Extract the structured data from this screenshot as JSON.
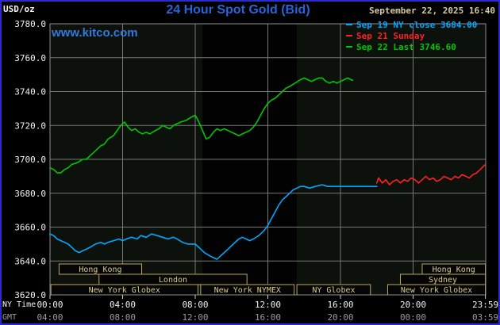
{
  "page": {
    "background": "#000000",
    "border_color": "#2a2ace"
  },
  "header": {
    "units_label": "USD/oz",
    "title": "24 Hour Spot Gold (Bid)",
    "title_color": "#2b63d9",
    "datetime": "September 22, 2025 16:40",
    "datetime_color": "#d6cba0",
    "watermark": "www.kitco.com",
    "watermark_color": "#3379e0"
  },
  "legend": {
    "position": "top-right",
    "items": [
      {
        "label": "Sep 19 NY close 3684.00",
        "color": "#00a8ff"
      },
      {
        "label": "Sep 21 Sunday",
        "color": "#ff2222"
      },
      {
        "label": "Sep 22 Last 3746.60",
        "color": "#00c800"
      }
    ]
  },
  "axis": {
    "ny_time_label": "NY Time",
    "gmt_label": "GMT"
  },
  "chart_data": {
    "type": "line",
    "title": "24 Hour Spot Gold (Bid)",
    "xlabel": "NY Time",
    "ylabel": "USD/oz",
    "ylim": [
      3620,
      3780
    ],
    "xlim_hours": [
      0,
      24
    ],
    "grid": true,
    "legend_position": "top-right",
    "colors": {
      "plot_bg": "#0d110c",
      "band": "#020202",
      "grid": "#787878",
      "border": "#909090",
      "axis_text": "#f2f2f2",
      "gmt_text": "#9b9b9b",
      "session_border": "#baa75c",
      "session_text": "#d9cc8e",
      "session_fill": "#050505",
      "tick": "#cccccc"
    },
    "y_ticks": [
      {
        "value": 3780,
        "label": "3780.0"
      },
      {
        "value": 3760,
        "label": "3760.0"
      },
      {
        "value": 3740,
        "label": "3740.0"
      },
      {
        "value": 3720,
        "label": "3720.0"
      },
      {
        "value": 3700,
        "label": "3700.0"
      },
      {
        "value": 3680,
        "label": "3680.0"
      },
      {
        "value": 3660,
        "label": "3660.0"
      },
      {
        "value": 3640,
        "label": "3640.0"
      },
      {
        "value": 3620,
        "label": "3620.0"
      }
    ],
    "x_ticks": [
      {
        "hour": 0,
        "ny": "00:00",
        "gmt": "04:00"
      },
      {
        "hour": 4,
        "ny": "04:00",
        "gmt": "08:00"
      },
      {
        "hour": 8,
        "ny": "08:00",
        "gmt": "12:00"
      },
      {
        "hour": 12,
        "ny": "12:00",
        "gmt": "16:00"
      },
      {
        "hour": 16,
        "ny": "16:00",
        "gmt": "20:00"
      },
      {
        "hour": 20,
        "ny": "20:00",
        "gmt": "00:00"
      },
      {
        "hour": 23.983,
        "ny": "23:59",
        "gmt": "03:59"
      }
    ],
    "shaded_region": {
      "start_hour": 8.4,
      "end_hour": 13.6
    },
    "sessions": [
      {
        "row": 1,
        "label": "Hong Kong",
        "start": 0.5,
        "end": 5.05
      },
      {
        "row": 1,
        "label": "Hong Kong",
        "start": 20.5,
        "end": 23.98
      },
      {
        "row": 2,
        "label": "London",
        "start": 2.7,
        "end": 10.85
      },
      {
        "row": 2,
        "label": "Sydney",
        "start": 19.3,
        "end": 23.98
      },
      {
        "row": 3,
        "label": "New York Globex",
        "start": 0.05,
        "end": 8.15
      },
      {
        "row": 3,
        "label": "New York NYMEX",
        "start": 8.3,
        "end": 13.45
      },
      {
        "row": 3,
        "label": "NY Globex",
        "start": 13.6,
        "end": 17.65
      },
      {
        "row": 3,
        "label": "New York Globex",
        "start": 18.6,
        "end": 23.98
      }
    ],
    "series": [
      {
        "name": "Sep 19 NY close",
        "close_value": 3684.0,
        "color": "#00a8ff",
        "points": [
          [
            0,
            3656
          ],
          [
            0.2,
            3655
          ],
          [
            0.4,
            3653
          ],
          [
            0.6,
            3652
          ],
          [
            0.8,
            3651
          ],
          [
            1,
            3650
          ],
          [
            1.2,
            3648
          ],
          [
            1.4,
            3646
          ],
          [
            1.6,
            3645
          ],
          [
            1.8,
            3646
          ],
          [
            2,
            3647
          ],
          [
            2.2,
            3648
          ],
          [
            2.5,
            3650
          ],
          [
            2.8,
            3651
          ],
          [
            3,
            3650
          ],
          [
            3.2,
            3651
          ],
          [
            3.5,
            3652
          ],
          [
            3.8,
            3653
          ],
          [
            4,
            3652
          ],
          [
            4.2,
            3653
          ],
          [
            4.5,
            3654
          ],
          [
            4.8,
            3653
          ],
          [
            5,
            3655
          ],
          [
            5.3,
            3654
          ],
          [
            5.6,
            3656
          ],
          [
            5.9,
            3655
          ],
          [
            6.2,
            3654
          ],
          [
            6.5,
            3653
          ],
          [
            6.8,
            3654
          ],
          [
            7,
            3653
          ],
          [
            7.3,
            3651
          ],
          [
            7.6,
            3650
          ],
          [
            8,
            3650
          ],
          [
            8.2,
            3648
          ],
          [
            8.5,
            3645
          ],
          [
            8.8,
            3643
          ],
          [
            9,
            3642
          ],
          [
            9.2,
            3641
          ],
          [
            9.4,
            3643
          ],
          [
            9.6,
            3645
          ],
          [
            9.8,
            3647
          ],
          [
            10,
            3649
          ],
          [
            10.2,
            3651
          ],
          [
            10.4,
            3653
          ],
          [
            10.6,
            3654
          ],
          [
            10.8,
            3653
          ],
          [
            11,
            3652
          ],
          [
            11.2,
            3653
          ],
          [
            11.5,
            3655
          ],
          [
            11.8,
            3658
          ],
          [
            12,
            3661
          ],
          [
            12.2,
            3665
          ],
          [
            12.4,
            3669
          ],
          [
            12.6,
            3673
          ],
          [
            12.8,
            3676
          ],
          [
            13,
            3678
          ],
          [
            13.2,
            3680
          ],
          [
            13.4,
            3682
          ],
          [
            13.6,
            3683
          ],
          [
            13.8,
            3684
          ],
          [
            14,
            3684
          ],
          [
            14.3,
            3683
          ],
          [
            14.6,
            3684
          ],
          [
            15,
            3685
          ],
          [
            15.3,
            3684
          ],
          [
            15.6,
            3684
          ],
          [
            16,
            3684
          ],
          [
            16.5,
            3684
          ],
          [
            17,
            3684
          ],
          [
            17.5,
            3684
          ],
          [
            18,
            3684
          ]
        ]
      },
      {
        "name": "Sep 21 Sunday",
        "color": "#ff2222",
        "points": [
          [
            18,
            3686
          ],
          [
            18.1,
            3689
          ],
          [
            18.3,
            3686
          ],
          [
            18.5,
            3688
          ],
          [
            18.7,
            3685
          ],
          [
            18.9,
            3687
          ],
          [
            19.1,
            3688
          ],
          [
            19.3,
            3686
          ],
          [
            19.5,
            3688
          ],
          [
            19.7,
            3687
          ],
          [
            19.9,
            3689
          ],
          [
            20.1,
            3688
          ],
          [
            20.3,
            3686
          ],
          [
            20.5,
            3688
          ],
          [
            20.7,
            3690
          ],
          [
            20.9,
            3688
          ],
          [
            21.1,
            3689
          ],
          [
            21.3,
            3687
          ],
          [
            21.5,
            3688
          ],
          [
            21.7,
            3690
          ],
          [
            21.9,
            3689
          ],
          [
            22.1,
            3688
          ],
          [
            22.3,
            3690
          ],
          [
            22.5,
            3689
          ],
          [
            22.7,
            3691
          ],
          [
            22.9,
            3690
          ],
          [
            23.1,
            3689
          ],
          [
            23.3,
            3691
          ],
          [
            23.5,
            3692
          ],
          [
            23.7,
            3694
          ],
          [
            23.98,
            3697
          ]
        ]
      },
      {
        "name": "Sep 22 Last",
        "last_value": 3746.6,
        "color": "#00c800",
        "points": [
          [
            0,
            3695
          ],
          [
            0.2,
            3694
          ],
          [
            0.4,
            3692
          ],
          [
            0.6,
            3692
          ],
          [
            0.8,
            3694
          ],
          [
            1,
            3695
          ],
          [
            1.2,
            3697
          ],
          [
            1.5,
            3698
          ],
          [
            1.8,
            3700
          ],
          [
            2,
            3700
          ],
          [
            2.2,
            3702
          ],
          [
            2.5,
            3705
          ],
          [
            2.8,
            3708
          ],
          [
            3,
            3709
          ],
          [
            3.2,
            3712
          ],
          [
            3.5,
            3714
          ],
          [
            3.7,
            3717
          ],
          [
            3.9,
            3720
          ],
          [
            4.1,
            3722
          ],
          [
            4.3,
            3719
          ],
          [
            4.5,
            3717
          ],
          [
            4.7,
            3718
          ],
          [
            4.9,
            3716
          ],
          [
            5.1,
            3715
          ],
          [
            5.3,
            3716
          ],
          [
            5.5,
            3715
          ],
          [
            5.8,
            3717
          ],
          [
            6,
            3718
          ],
          [
            6.2,
            3720
          ],
          [
            6.4,
            3719
          ],
          [
            6.6,
            3718
          ],
          [
            6.8,
            3720
          ],
          [
            7,
            3721
          ],
          [
            7.2,
            3722
          ],
          [
            7.5,
            3723
          ],
          [
            7.8,
            3725
          ],
          [
            8,
            3726
          ],
          [
            8.2,
            3722
          ],
          [
            8.4,
            3717
          ],
          [
            8.6,
            3712
          ],
          [
            8.8,
            3713
          ],
          [
            9,
            3716
          ],
          [
            9.2,
            3718
          ],
          [
            9.4,
            3717
          ],
          [
            9.6,
            3718
          ],
          [
            9.8,
            3717
          ],
          [
            10,
            3716
          ],
          [
            10.2,
            3715
          ],
          [
            10.4,
            3714
          ],
          [
            10.6,
            3715
          ],
          [
            10.8,
            3716
          ],
          [
            11,
            3717
          ],
          [
            11.2,
            3719
          ],
          [
            11.4,
            3722
          ],
          [
            11.6,
            3726
          ],
          [
            11.8,
            3730
          ],
          [
            12,
            3733
          ],
          [
            12.2,
            3735
          ],
          [
            12.4,
            3736
          ],
          [
            12.6,
            3738
          ],
          [
            12.8,
            3740
          ],
          [
            13,
            3742
          ],
          [
            13.2,
            3743
          ],
          [
            13.5,
            3745
          ],
          [
            13.8,
            3747
          ],
          [
            14,
            3748
          ],
          [
            14.2,
            3747
          ],
          [
            14.4,
            3746
          ],
          [
            14.6,
            3747
          ],
          [
            14.8,
            3748
          ],
          [
            15,
            3748
          ],
          [
            15.2,
            3746
          ],
          [
            15.4,
            3745
          ],
          [
            15.6,
            3746
          ],
          [
            15.8,
            3745
          ],
          [
            16,
            3746
          ],
          [
            16.2,
            3747
          ],
          [
            16.4,
            3748
          ],
          [
            16.67,
            3746.6
          ]
        ]
      }
    ]
  }
}
